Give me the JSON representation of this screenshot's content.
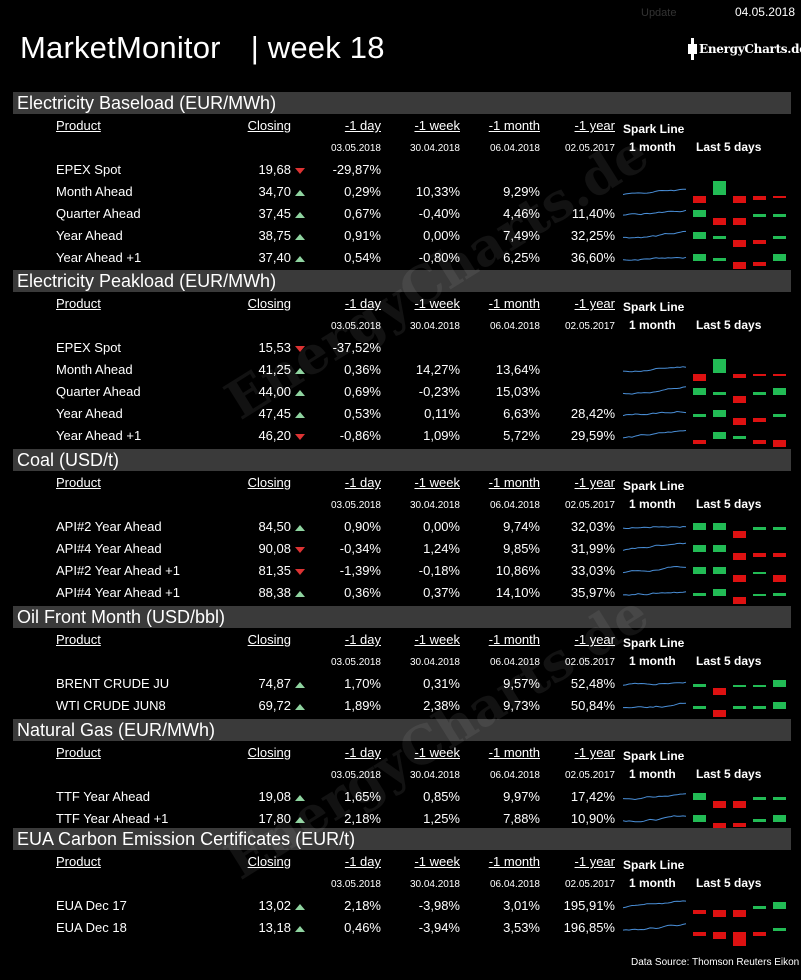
{
  "header": {
    "title": "MarketMonitor",
    "week": "| week 18",
    "date": "04.05.2018",
    "update_label": "Update",
    "logo_text": "EnergyCharts.de"
  },
  "columns": {
    "product": "Product",
    "closing": "Closing",
    "d1": "-1 day",
    "w1": "-1 week",
    "m1": "-1 month",
    "y1": "-1 year",
    "spark_line": "Spark Line",
    "spark_period": "1 month",
    "last5": "Last 5  days"
  },
  "colors": {
    "up": "#8fd4a0",
    "down": "#dd2222",
    "bar_up": "#22bb55",
    "bar_down": "#dd1111",
    "spark": "#4a8fd8"
  },
  "sections": [
    {
      "title": "Electricity Baseload (EUR/MWh)",
      "dates": [
        "03.05.2018",
        "30.04.2018",
        "06.04.2018",
        "02.05.2017"
      ],
      "rows": [
        {
          "product": "EPEX Spot",
          "closing": "19,68",
          "trend": "down",
          "d1": "-29,87%",
          "w1": "",
          "m1": "",
          "y1": "",
          "spark": false,
          "bars": []
        },
        {
          "product": "Month Ahead",
          "closing": "34,70",
          "trend": "up",
          "d1": "0,29%",
          "w1": "10,33%",
          "m1": "9,29%",
          "y1": "",
          "spark": true,
          "bars": [
            -1,
            2,
            -1,
            -0.5,
            -0.3
          ]
        },
        {
          "product": "Quarter Ahead",
          "closing": "37,45",
          "trend": "up",
          "d1": "0,67%",
          "w1": "-0,40%",
          "m1": "4,46%",
          "y1": "11,40%",
          "spark": true,
          "bars": [
            1,
            -1,
            -1,
            0.5,
            0.5
          ]
        },
        {
          "product": "Year Ahead",
          "closing": "38,75",
          "trend": "up",
          "d1": "0,91%",
          "w1": "0,00%",
          "m1": "7,49%",
          "y1": "32,25%",
          "spark": true,
          "bars": [
            1,
            0.5,
            -1,
            -0.5,
            0.5
          ]
        },
        {
          "product": "Year  Ahead +1",
          "closing": "37,40",
          "trend": "up",
          "d1": "0,54%",
          "w1": "-0,80%",
          "m1": "6,25%",
          "y1": "36,60%",
          "spark": true,
          "bars": [
            1,
            0.5,
            -1,
            -0.5,
            1
          ]
        }
      ]
    },
    {
      "title": "Electricity Peakload (EUR/MWh)",
      "dates": [
        "03.05.2018",
        "30.04.2018",
        "06.04.2018",
        "02.05.2017"
      ],
      "rows": [
        {
          "product": "EPEX Spot",
          "closing": "15,53",
          "trend": "down",
          "d1": "-37,52%",
          "w1": "",
          "m1": "",
          "y1": "",
          "spark": false,
          "bars": []
        },
        {
          "product": "Month Ahead",
          "closing": "41,25",
          "trend": "up",
          "d1": "0,36%",
          "w1": "14,27%",
          "m1": "13,64%",
          "y1": "",
          "spark": true,
          "bars": [
            -1,
            2,
            -0.5,
            -0.3,
            -0.3
          ]
        },
        {
          "product": "Quarter Ahead",
          "closing": "44,00",
          "trend": "up",
          "d1": "0,69%",
          "w1": "-0,23%",
          "m1": "15,03%",
          "y1": "",
          "spark": true,
          "bars": [
            1,
            0.5,
            -1,
            0.5,
            1
          ]
        },
        {
          "product": "Year Ahead",
          "closing": "47,45",
          "trend": "up",
          "d1": "0,53%",
          "w1": "0,11%",
          "m1": "6,63%",
          "y1": "28,42%",
          "spark": true,
          "bars": [
            0.5,
            1,
            -1,
            -0.5,
            0.5
          ]
        },
        {
          "product": "Year  Ahead +1",
          "closing": "46,20",
          "trend": "down",
          "d1": "-0,86%",
          "w1": "1,09%",
          "m1": "5,72%",
          "y1": "29,59%",
          "spark": true,
          "bars": [
            -0.5,
            1,
            0.5,
            -0.5,
            -1
          ]
        }
      ]
    },
    {
      "title": "Coal (USD/t)",
      "dates": [
        "03.05.2018",
        "30.04.2018",
        "06.04.2018",
        "02.05.2017"
      ],
      "rows": [
        {
          "product": "API#2 Year Ahead",
          "closing": "84,50",
          "trend": "up",
          "d1": "0,90%",
          "w1": "0,00%",
          "m1": "9,74%",
          "y1": "32,03%",
          "spark": true,
          "bars": [
            1,
            1,
            -1,
            0.5,
            0.5
          ]
        },
        {
          "product": "API#4 Year Ahead",
          "closing": "90,08",
          "trend": "down",
          "d1": "-0,34%",
          "w1": "1,24%",
          "m1": "9,85%",
          "y1": "31,99%",
          "spark": true,
          "bars": [
            1,
            1,
            -1,
            -0.5,
            -0.5
          ]
        },
        {
          "product": "API#2 Year Ahead +1",
          "closing": "81,35",
          "trend": "down",
          "d1": "-1,39%",
          "w1": "-0,18%",
          "m1": "10,86%",
          "y1": "33,03%",
          "spark": true,
          "bars": [
            1,
            1,
            -1,
            0.3,
            -1
          ]
        },
        {
          "product": "API#4 Year Ahead +1",
          "closing": "88,38",
          "trend": "up",
          "d1": "0,36%",
          "w1": "0,37%",
          "m1": "14,10%",
          "y1": "35,97%",
          "spark": true,
          "bars": [
            0.5,
            1,
            -1,
            0.3,
            0.5
          ]
        }
      ]
    },
    {
      "title": "Oil Front Month (USD/bbl)",
      "dates": [
        "03.05.2018",
        "30.04.2018",
        "06.04.2018",
        "02.05.2017"
      ],
      "rows": [
        {
          "product": "BRENT CRUDE JU",
          "closing": "74,87",
          "trend": "up",
          "d1": "1,70%",
          "w1": "0,31%",
          "m1": "9,57%",
          "y1": "52,48%",
          "spark": true,
          "bars": [
            0.5,
            -1,
            0.3,
            0.3,
            1
          ]
        },
        {
          "product": "WTI CRUDE JUN8",
          "closing": "69,72",
          "trend": "up",
          "d1": "1,89%",
          "w1": "2,38%",
          "m1": "9,73%",
          "y1": "50,84%",
          "spark": true,
          "bars": [
            0.5,
            -1,
            0.5,
            0.5,
            1
          ]
        }
      ]
    },
    {
      "title": "Natural Gas (EUR/MWh)",
      "dates": [
        "03.05.2018",
        "30.04.2018",
        "06.04.2018",
        "02.05.2017"
      ],
      "rows": [
        {
          "product": "TTF Year Ahead",
          "closing": "19,08",
          "trend": "up",
          "d1": "1,65%",
          "w1": "0,85%",
          "m1": "9,97%",
          "y1": "17,42%",
          "spark": true,
          "bars": [
            1,
            -1,
            -1,
            0.5,
            0.5
          ]
        },
        {
          "product": "TTF Year Ahead +1",
          "closing": "17,80",
          "trend": "up",
          "d1": "2,18%",
          "w1": "1,25%",
          "m1": "7,88%",
          "y1": "10,90%",
          "spark": true,
          "bars": [
            1,
            -1,
            -0.5,
            0.5,
            1
          ]
        }
      ]
    },
    {
      "title": "EUA Carbon Emission Certificates (EUR/t)",
      "dates": [
        "03.05.2018",
        "30.04.2018",
        "06.04.2018",
        "02.05.2017"
      ],
      "rows": [
        {
          "product": "EUA Dec 17",
          "closing": "13,02",
          "trend": "up",
          "d1": "2,18%",
          "w1": "-3,98%",
          "m1": "3,01%",
          "y1": "195,91%",
          "spark": true,
          "bars": [
            -0.5,
            -1,
            -1,
            0.5,
            1
          ]
        },
        {
          "product": "EUA Dec 18",
          "closing": "13,18",
          "trend": "up",
          "d1": "0,46%",
          "w1": "-3,94%",
          "m1": "3,53%",
          "y1": "196,85%",
          "spark": true,
          "bars": [
            -0.5,
            -1,
            -2,
            -0.5,
            0.5
          ]
        }
      ]
    }
  ],
  "footer": "Data Source: Thomson Reuters Eikon",
  "watermark": "EnergyCharts.de"
}
